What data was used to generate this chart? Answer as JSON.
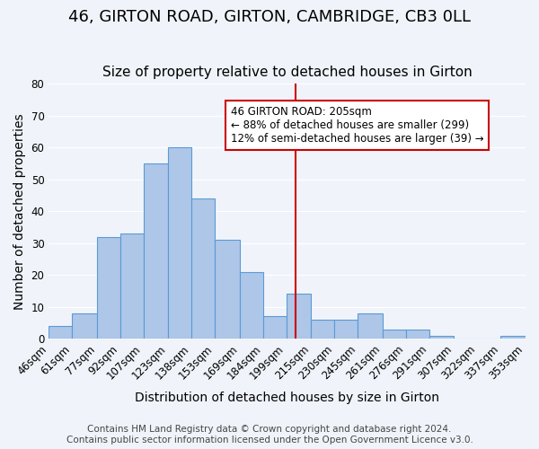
{
  "title": "46, GIRTON ROAD, GIRTON, CAMBRIDGE, CB3 0LL",
  "subtitle": "Size of property relative to detached houses in Girton",
  "xlabel": "Distribution of detached houses by size in Girton",
  "ylabel": "Number of detached properties",
  "footer_line1": "Contains HM Land Registry data © Crown copyright and database right 2024.",
  "footer_line2": "Contains public sector information licensed under the Open Government Licence v3.0.",
  "bin_labels": [
    "46sqm",
    "61sqm",
    "77sqm",
    "92sqm",
    "107sqm",
    "123sqm",
    "138sqm",
    "153sqm",
    "169sqm",
    "184sqm",
    "199sqm",
    "215sqm",
    "230sqm",
    "245sqm",
    "261sqm",
    "276sqm",
    "291sqm",
    "307sqm",
    "322sqm",
    "337sqm",
    "353sqm"
  ],
  "bar_values": [
    4,
    8,
    32,
    33,
    55,
    60,
    44,
    31,
    21,
    7,
    14,
    6,
    6,
    8,
    3,
    3,
    1,
    0,
    0,
    1
  ],
  "bin_edges": [
    46,
    61,
    77,
    92,
    107,
    123,
    138,
    153,
    169,
    184,
    199,
    215,
    230,
    245,
    261,
    276,
    291,
    307,
    322,
    337,
    353
  ],
  "bar_color": "#aec6e8",
  "bar_edgecolor": "#5b9bd5",
  "reference_line_x": 205,
  "reference_line_color": "#cc0000",
  "ylim": [
    0,
    80
  ],
  "yticks": [
    0,
    10,
    20,
    30,
    40,
    50,
    60,
    70,
    80
  ],
  "bg_color": "#f0f4fa",
  "grid_color": "#ffffff",
  "annotation_text": "46 GIRTON ROAD: 205sqm\n← 88% of detached houses are smaller (299)\n12% of semi-detached houses are larger (39) →",
  "annotation_box_color": "#ffffff",
  "annotation_box_edgecolor": "#cc0000",
  "title_fontsize": 13,
  "subtitle_fontsize": 11,
  "axis_label_fontsize": 10,
  "tick_fontsize": 8.5,
  "footer_fontsize": 7.5
}
